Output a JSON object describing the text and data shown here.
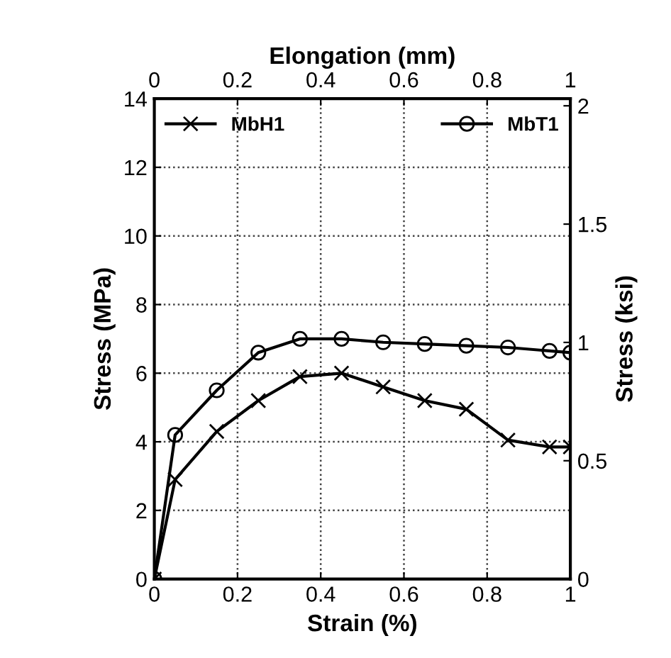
{
  "chart_data": {
    "type": "line",
    "xlabel": "Strain (%)",
    "ylabel": "Stress (MPa)",
    "y2label": "Stress (ksi)",
    "x2label": "Elongation (mm)",
    "x": [
      0,
      0.05,
      0.15,
      0.25,
      0.35,
      0.45,
      0.55,
      0.65,
      0.75,
      0.85,
      0.95,
      1.0
    ],
    "series": [
      {
        "name": "MbH1",
        "color": "#000000",
        "marker": "cross",
        "values": [
          0,
          2.9,
          4.3,
          5.2,
          5.9,
          6.0,
          5.6,
          5.2,
          4.95,
          4.05,
          3.85,
          3.85
        ]
      },
      {
        "name": "MbT1",
        "color": "#000000",
        "marker": "circle",
        "values": [
          0,
          4.2,
          5.5,
          6.6,
          7.0,
          7.0,
          6.9,
          6.85,
          6.8,
          6.75,
          6.65,
          6.6
        ]
      }
    ],
    "xlim": [
      0,
      1
    ],
    "xticks": [
      0,
      0.2,
      0.4,
      0.6,
      0.8,
      1
    ],
    "x2lim": [
      0,
      1
    ],
    "x2ticks": [
      0,
      0.2,
      0.4,
      0.6,
      0.8,
      1
    ],
    "ylim": [
      0,
      14
    ],
    "yticks": [
      0,
      2,
      4,
      6,
      8,
      10,
      12,
      14
    ],
    "y2lim": [
      0,
      2.03
    ],
    "y2ticks": [
      0,
      0.5,
      1,
      1.5,
      2
    ],
    "grid": true,
    "legend": "top",
    "line_style": "solid"
  }
}
